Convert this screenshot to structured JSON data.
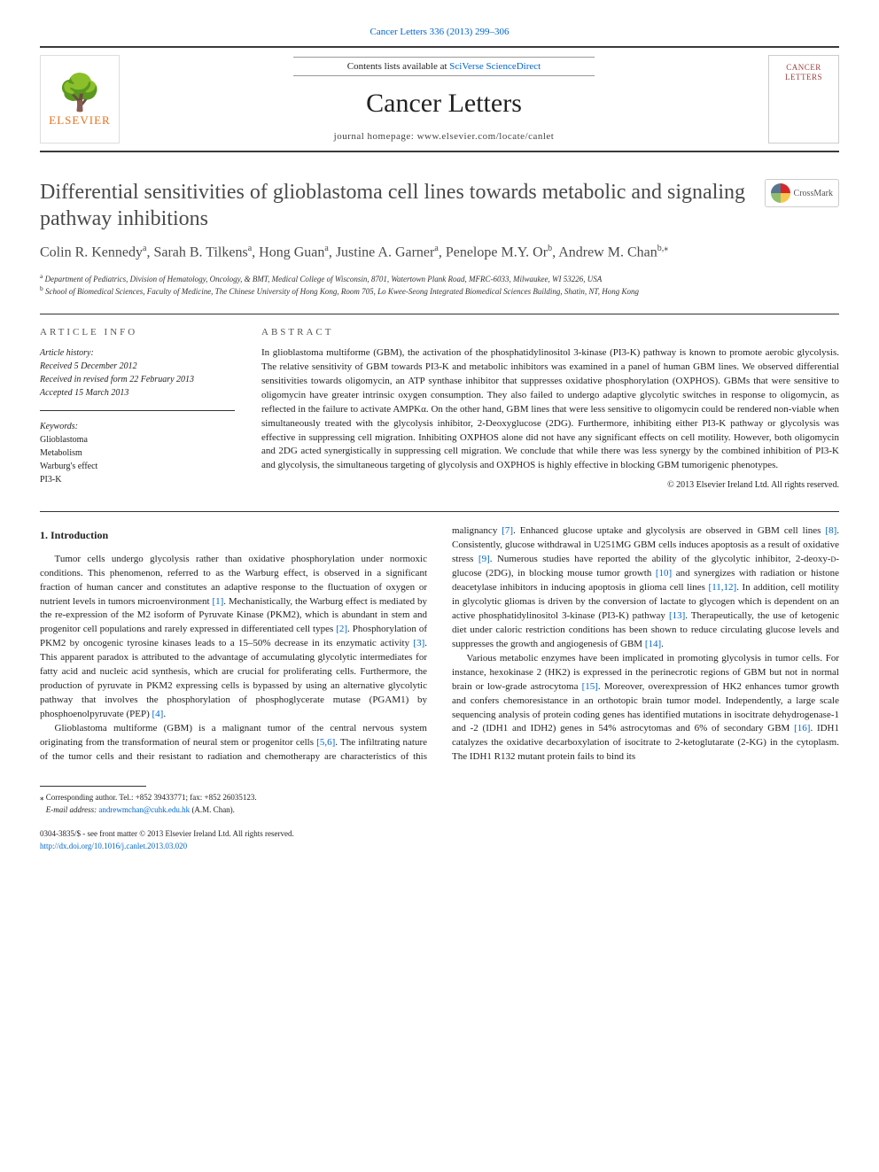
{
  "citation": {
    "text": "Cancer Letters 336 (2013) 299–306",
    "link_color": "#0066cc"
  },
  "header": {
    "contents_prefix": "Contents lists available at ",
    "contents_link": "SciVerse ScienceDirect",
    "journal": "Cancer Letters",
    "homepage_label": "journal homepage: ",
    "homepage_url": "www.elsevier.com/locate/canlet",
    "publisher_name": "ELSEVIER",
    "cover_text_1": "CANCER",
    "cover_text_2": "LETTERS"
  },
  "crossmark": {
    "label": "CrossMark"
  },
  "title": "Differential sensitivities of glioblastoma cell lines towards metabolic and signaling pathway inhibitions",
  "authors_html_parts": {
    "a1": "Colin R. Kennedy",
    "a1_aff": "a",
    "a2": "Sarah B. Tilkens",
    "a2_aff": "a",
    "a3": "Hong Guan",
    "a3_aff": "a",
    "a4": "Justine A. Garner",
    "a4_aff": "a",
    "a5": "Penelope M.Y. Or",
    "a5_aff": "b",
    "a6": "Andrew M. Chan",
    "a6_aff": "b,",
    "a6_corr": "⁎"
  },
  "affiliations": {
    "a": "Department of Pediatrics, Division of Hematology, Oncology, & BMT, Medical College of Wisconsin, 8701, Watertown Plank Road, MFRC-6033, Milwaukee, WI 53226, USA",
    "b": "School of Biomedical Sciences, Faculty of Medicine, The Chinese University of Hong Kong, Room 705, Lo Kwee-Seong Integrated Biomedical Sciences Building, Shatin, NT, Hong Kong"
  },
  "article_info": {
    "label": "ARTICLE INFO",
    "history_label": "Article history:",
    "received": "Received 5 December 2012",
    "revised": "Received in revised form 22 February 2013",
    "accepted": "Accepted 15 March 2013",
    "keywords_label": "Keywords:",
    "keywords": [
      "Glioblastoma",
      "Metabolism",
      "Warburg's effect",
      "PI3-K"
    ]
  },
  "abstract": {
    "label": "ABSTRACT",
    "text": "In glioblastoma multiforme (GBM), the activation of the phosphatidylinositol 3-kinase (PI3-K) pathway is known to promote aerobic glycolysis. The relative sensitivity of GBM towards PI3-K and metabolic inhibitors was examined in a panel of human GBM lines. We observed differential sensitivities towards oligomycin, an ATP synthase inhibitor that suppresses oxidative phosphorylation (OXPHOS). GBMs that were sensitive to oligomycin have greater intrinsic oxygen consumption. They also failed to undergo adaptive glycolytic switches in response to oligomycin, as reflected in the failure to activate AMPKα. On the other hand, GBM lines that were less sensitive to oligomycin could be rendered non-viable when simultaneously treated with the glycolysis inhibitor, 2-Deoxyglucose (2DG). Furthermore, inhibiting either PI3-K pathway or glycolysis was effective in suppressing cell migration. Inhibiting OXPHOS alone did not have any significant effects on cell motility. However, both oligomycin and 2DG acted synergistically in suppressing cell migration. We conclude that while there was less synergy by the combined inhibition of PI3-K and glycolysis, the simultaneous targeting of glycolysis and OXPHOS is highly effective in blocking GBM tumorigenic phenotypes.",
    "copyright": "© 2013 Elsevier Ireland Ltd. All rights reserved."
  },
  "body": {
    "section1_heading": "1. Introduction",
    "p1_a": "Tumor cells undergo glycolysis rather than oxidative phosphorylation under normoxic conditions. This phenomenon, referred to as the Warburg effect, is observed in a significant fraction of human cancer and constitutes an adaptive response to the fluctuation of oxygen or nutrient levels in tumors microenvironment ",
    "p1_b": ". Mechanistically, the Warburg effect is mediated by the re-expression of the M2 isoform of Pyruvate Kinase (PKM2), which is abundant in stem and progenitor cell populations and rarely expressed in differentiated cell types ",
    "p1_c": ". Phosphorylation of PKM2 by oncogenic tyrosine kinases leads to a 15–50% decrease in its enzymatic activity ",
    "p1_d": ". This apparent paradox is attributed to the advantage of accumulating glycolytic intermediates for fatty acid and nucleic acid synthesis, which are crucial for proliferating cells. Furthermore, the production of pyruvate in PKM2 expressing cells is bypassed by using an alternative glycolytic pathway that involves the phosphorylation of phosphoglycerate mutase (PGAM1) by phosphoenolpyruvate (PEP) ",
    "p1_e": ".",
    "p2_a": "Glioblastoma multiforme (GBM) is a malignant tumor of the central nervous system originating from the transformation of neural stem or progenitor cells ",
    "p2_b": ". The infiltrating nature of ",
    "p2_c": "the tumor cells and their resistant to radiation and chemotherapy are characteristics of this malignancy ",
    "p2_d": ". Enhanced glucose uptake and glycolysis are observed in GBM cell lines ",
    "p2_e": ". Consistently, glucose withdrawal in U251MG GBM cells induces apoptosis as a result of oxidative stress ",
    "p2_f": ". Numerous studies have reported the ability of the glycolytic inhibitor, 2-deoxy-",
    "p2_g": "-glucose (2DG), in blocking mouse tumor growth ",
    "p2_h": " and synergizes with radiation or histone deacetylase inhibitors in inducing apoptosis in glioma cell lines ",
    "p2_i": ". In addition, cell motility in glycolytic gliomas is driven by the conversion of lactate to glycogen which is dependent on an active phosphatidylinositol 3-kinase (PI3-K) pathway ",
    "p2_j": ". Therapeutically, the use of ketogenic diet under caloric restriction conditions has been shown to reduce circulating glucose levels and suppresses the growth and angiogenesis of GBM ",
    "p2_k": ".",
    "p3_a": "Various metabolic enzymes have been implicated in promoting glycolysis in tumor cells. For instance, hexokinase 2 (HK2) is expressed in the perinecrotic regions of GBM but not in normal brain or low-grade astrocytoma ",
    "p3_b": ". Moreover, overexpression of HK2 enhances tumor growth and confers chemoresistance in an orthotopic brain tumor model. Independently, a large scale sequencing analysis of protein coding genes has identified mutations in isocitrate dehydrogenase-1 and -2 (IDH1 and IDH2) genes in 54% astrocytomas and 6% of secondary GBM ",
    "p3_c": ". IDH1 catalyzes the oxidative decarboxylation of isocitrate to 2-ketoglutarate (2-KG) in the cytoplasm. The IDH1 R132 mutant protein fails to bind its",
    "refs": {
      "r1": "[1]",
      "r2": "[2]",
      "r3": "[3]",
      "r4": "[4]",
      "r56": "[5,6]",
      "r7": "[7]",
      "r8": "[8]",
      "r9": "[9]",
      "r10": "[10]",
      "r1112": "[11,12]",
      "r13": "[13]",
      "r14": "[14]",
      "r15": "[15]",
      "r16": "[16]"
    },
    "d_letter": "d"
  },
  "corresponding": {
    "marker": "⁎",
    "text": " Corresponding author. Tel.: +852 39433771; fax: +852 26035123.",
    "email_label": "E-mail address: ",
    "email": "andrewmchan@cuhk.edu.hk",
    "email_suffix": " (A.M. Chan)."
  },
  "bottom": {
    "line1": "0304-3835/$ - see front matter © 2013 Elsevier Ireland Ltd. All rights reserved.",
    "doi": "http://dx.doi.org/10.1016/j.canlet.2013.03.020"
  },
  "colors": {
    "link": "#0066cc",
    "elsevier_orange": "#e9711c",
    "rule": "#333333",
    "title_gray": "#4a4a4a"
  }
}
